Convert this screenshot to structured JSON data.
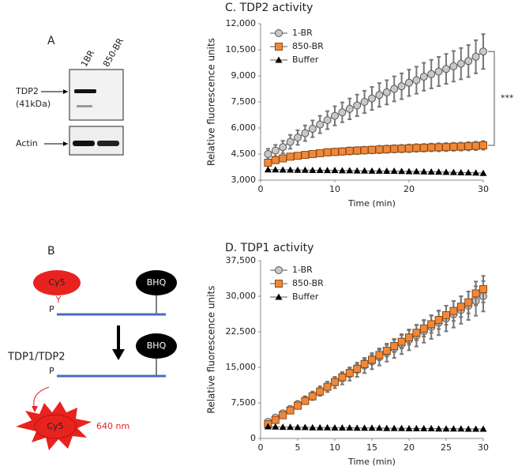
{
  "panel_a": {
    "letter": "A",
    "lanes": [
      "1BR",
      "850-BR"
    ],
    "band_labels": [
      "TDP2",
      "(41kDa)",
      "Actin"
    ]
  },
  "panel_b": {
    "letter": "B",
    "probe": "Cy5",
    "quencher": "BHQ",
    "phosphate": "P",
    "linker": "Y",
    "enzyme": "TDP1/TDP2",
    "emission": "640 nm"
  },
  "chart_data": [
    {
      "type": "line",
      "title": "C. TDP2 activity",
      "x_label": "Time (min)",
      "y_label": "Relative fluorescence units",
      "annotation": "***",
      "legend": "upper left",
      "x": [
        1,
        2,
        3,
        4,
        5,
        6,
        7,
        8,
        9,
        10,
        11,
        12,
        13,
        14,
        15,
        16,
        17,
        18,
        19,
        20,
        21,
        22,
        23,
        24,
        25,
        26,
        27,
        28,
        29,
        30
      ],
      "xlim": [
        0,
        30
      ],
      "xticks": [
        0,
        10,
        20,
        30
      ],
      "ylim": [
        3000,
        12000
      ],
      "yticks": [
        {
          "value": 3000,
          "label": "3,000"
        },
        {
          "value": 4500,
          "label": "4,500"
        },
        {
          "value": 6000,
          "label": "6,000"
        },
        {
          "value": 7500,
          "label": "7,500"
        },
        {
          "value": 9000,
          "label": "9,000"
        },
        {
          "value": 10500,
          "label": "10,500"
        },
        {
          "value": 12000,
          "label": "12,000"
        }
      ],
      "series": [
        {
          "name": "1-BR",
          "color": "#c8c8c8",
          "marker": "circle",
          "values": [
            4500,
            4700,
            4900,
            5200,
            5450,
            5700,
            5950,
            6200,
            6450,
            6700,
            6900,
            7100,
            7300,
            7500,
            7700,
            7900,
            8050,
            8250,
            8400,
            8600,
            8750,
            8950,
            9100,
            9250,
            9400,
            9550,
            9700,
            9850,
            10100,
            10400
          ],
          "errors": [
            300,
            330,
            360,
            400,
            420,
            450,
            480,
            500,
            520,
            550,
            570,
            600,
            620,
            640,
            660,
            680,
            700,
            720,
            740,
            760,
            780,
            800,
            820,
            840,
            860,
            880,
            900,
            920,
            950,
            1000
          ]
        },
        {
          "name": "850-BR",
          "color": "#f0883a",
          "marker": "square",
          "values": [
            4000,
            4150,
            4250,
            4350,
            4400,
            4450,
            4500,
            4550,
            4600,
            4620,
            4650,
            4680,
            4700,
            4720,
            4740,
            4760,
            4780,
            4800,
            4810,
            4830,
            4850,
            4860,
            4880,
            4890,
            4900,
            4920,
            4930,
            4950,
            4970,
            5000
          ],
          "errors": [
            150,
            160,
            160,
            170,
            170,
            180,
            180,
            180,
            190,
            190,
            190,
            200,
            200,
            200,
            200,
            210,
            210,
            210,
            210,
            220,
            220,
            220,
            220,
            230,
            230,
            230,
            230,
            240,
            240,
            250
          ]
        },
        {
          "name": "Buffer",
          "color": "#000000",
          "marker": "triangle",
          "values": [
            3600,
            3600,
            3590,
            3590,
            3580,
            3580,
            3570,
            3570,
            3560,
            3560,
            3550,
            3550,
            3540,
            3540,
            3530,
            3530,
            3520,
            3520,
            3510,
            3500,
            3500,
            3490,
            3480,
            3470,
            3460,
            3450,
            3440,
            3430,
            3420,
            3400
          ]
        }
      ]
    },
    {
      "type": "line",
      "title": "D. TDP1 activity",
      "x_label": "Time (min)",
      "y_label": "Relative fluorescence units",
      "legend": "upper left",
      "x": [
        1,
        2,
        3,
        4,
        5,
        6,
        7,
        8,
        9,
        10,
        11,
        12,
        13,
        14,
        15,
        16,
        17,
        18,
        19,
        20,
        21,
        22,
        23,
        24,
        25,
        26,
        27,
        28,
        29,
        30
      ],
      "xlim": [
        0,
        30
      ],
      "xticks": [
        0,
        5,
        10,
        15,
        20,
        25,
        30
      ],
      "ylim": [
        0,
        37500
      ],
      "yticks": [
        0,
        {
          "value": 7500,
          "label": "7,500"
        },
        {
          "value": 15000,
          "label": "15,000"
        },
        {
          "value": 22500,
          "label": "22,500"
        },
        {
          "value": 30000,
          "label": "30,000"
        },
        {
          "value": 37500,
          "label": "37,500"
        }
      ],
      "series": [
        {
          "name": "1-BR",
          "color": "#c8c8c8",
          "marker": "circle",
          "values": [
            3500,
            4400,
            5300,
            6200,
            7200,
            8100,
            9000,
            10000,
            10900,
            11800,
            12700,
            13600,
            14500,
            15400,
            16300,
            17200,
            18100,
            19000,
            19900,
            20800,
            21700,
            22600,
            23500,
            24400,
            25300,
            26200,
            27100,
            28000,
            29000,
            30000
          ],
          "errors": [
            400,
            450,
            500,
            600,
            700,
            800,
            900,
            1000,
            1100,
            1200,
            1300,
            1400,
            1500,
            1600,
            1700,
            1800,
            1900,
            2000,
            2100,
            2200,
            2300,
            2400,
            2500,
            2600,
            2700,
            2800,
            2900,
            3000,
            3100,
            3200
          ]
        },
        {
          "name": "850-BR",
          "color": "#f0883a",
          "marker": "square",
          "values": [
            3000,
            3900,
            4900,
            5900,
            6900,
            7900,
            8900,
            9900,
            10900,
            11900,
            12900,
            13800,
            14700,
            15700,
            16600,
            17600,
            18500,
            19500,
            20400,
            21300,
            22300,
            23200,
            24100,
            25000,
            26000,
            26900,
            27800,
            28700,
            30600,
            31500
          ],
          "errors": [
            300,
            350,
            400,
            450,
            500,
            550,
            600,
            650,
            700,
            750,
            800,
            850,
            900,
            950,
            1000,
            1100,
            1200,
            1300,
            1400,
            1500,
            1600,
            1700,
            1800,
            1900,
            2000,
            2100,
            2200,
            2300,
            2500,
            2800
          ]
        },
        {
          "name": "Buffer",
          "color": "#000000",
          "marker": "triangle",
          "values": [
            2500,
            2450,
            2400,
            2400,
            2350,
            2350,
            2300,
            2300,
            2300,
            2250,
            2250,
            2250,
            2200,
            2200,
            2200,
            2200,
            2150,
            2150,
            2150,
            2100,
            2100,
            2100,
            2100,
            2050,
            2050,
            2050,
            2050,
            2000,
            2000,
            2000
          ]
        }
      ]
    }
  ]
}
